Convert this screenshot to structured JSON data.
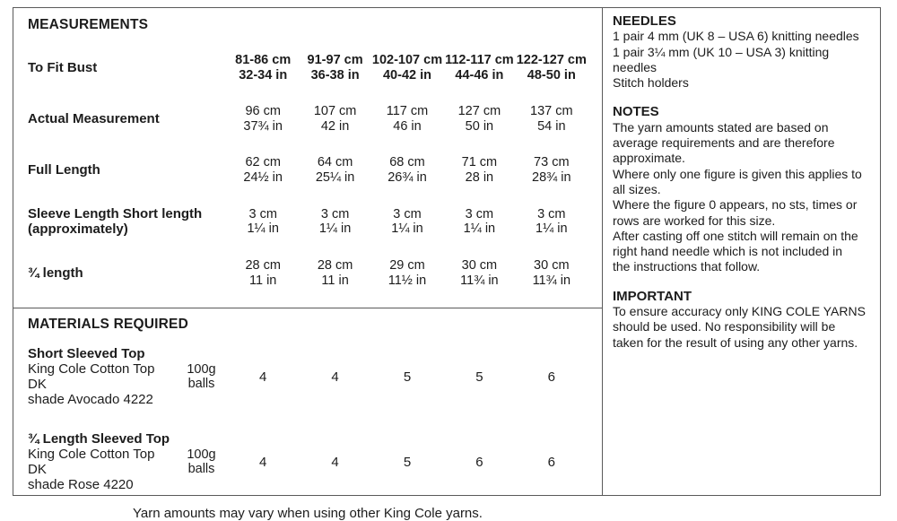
{
  "measurements": {
    "title": "MEASUREMENTS",
    "rows": [
      {
        "header": true,
        "label": "To Fit Bust",
        "values": [
          [
            "81-86 cm",
            "32-34 in"
          ],
          [
            "91-97 cm",
            "36-38 in"
          ],
          [
            "102-107 cm",
            "40-42 in"
          ],
          [
            "112-117 cm",
            "44-46 in"
          ],
          [
            "122-127 cm",
            "48-50 in"
          ]
        ]
      },
      {
        "label": "Actual Measurement",
        "values": [
          [
            "96 cm",
            "37¾ in"
          ],
          [
            "107 cm",
            "42 in"
          ],
          [
            "117 cm",
            "46 in"
          ],
          [
            "127 cm",
            "50 in"
          ],
          [
            "137 cm",
            "54 in"
          ]
        ]
      },
      {
        "label": "Full Length",
        "values": [
          [
            "62 cm",
            "24½ in"
          ],
          [
            "64 cm",
            "25¼ in"
          ],
          [
            "68 cm",
            "26¾ in"
          ],
          [
            "71 cm",
            "28 in"
          ],
          [
            "73 cm",
            "28¾ in"
          ]
        ]
      },
      {
        "label": "Sleeve Length Short length\n(approximately)",
        "values": [
          [
            "3 cm",
            "1¼ in"
          ],
          [
            "3 cm",
            "1¼ in"
          ],
          [
            "3 cm",
            "1¼ in"
          ],
          [
            "3 cm",
            "1¼ in"
          ],
          [
            "3 cm",
            "1¼ in"
          ]
        ]
      },
      {
        "label": "¾ length",
        "values": [
          [
            "28 cm",
            "11 in"
          ],
          [
            "28 cm",
            "11 in"
          ],
          [
            "29 cm",
            "11½ in"
          ],
          [
            "30 cm",
            "11¾ in"
          ],
          [
            "30 cm",
            "11¾ in"
          ]
        ]
      }
    ]
  },
  "materials": {
    "title": "MATERIALS REQUIRED",
    "items": [
      {
        "name": "Short Sleeved Top",
        "lines": [
          "King Cole Cotton Top DK",
          "shade Avocado 4222"
        ],
        "unit": [
          "100g",
          "balls"
        ],
        "values": [
          "4",
          "4",
          "5",
          "5",
          "6"
        ]
      },
      {
        "name": "¾ Length Sleeved Top",
        "lines": [
          "King Cole Cotton Top DK",
          "shade Rose 4220"
        ],
        "unit": [
          "100g",
          "balls"
        ],
        "values": [
          "4",
          "4",
          "5",
          "6",
          "6"
        ]
      }
    ],
    "footnote": "Yarn amounts may vary when using other King Cole yarns."
  },
  "needles": {
    "title": "NEEDLES",
    "lines": [
      "1 pair 4 mm (UK 8 – USA 6) knitting needles",
      "1 pair 3¼ mm (UK 10 – USA 3) knitting",
      "needles",
      "Stitch holders"
    ]
  },
  "notes": {
    "title": "NOTES",
    "lines": [
      "The yarn amounts stated are based on",
      "average requirements and are therefore",
      "approximate.",
      "Where only one figure is given this applies to",
      "all sizes.",
      "Where the figure 0 appears, no sts, times or",
      "rows are worked for this size.",
      "After casting off one stitch will remain on the",
      "right hand needle which is not included in",
      "the instructions that follow."
    ]
  },
  "important": {
    "title": "IMPORTANT",
    "lines": [
      "To ensure accuracy only KING COLE YARNS",
      "should be used. No responsibility will be",
      "taken for the result of using any other yarns."
    ]
  }
}
